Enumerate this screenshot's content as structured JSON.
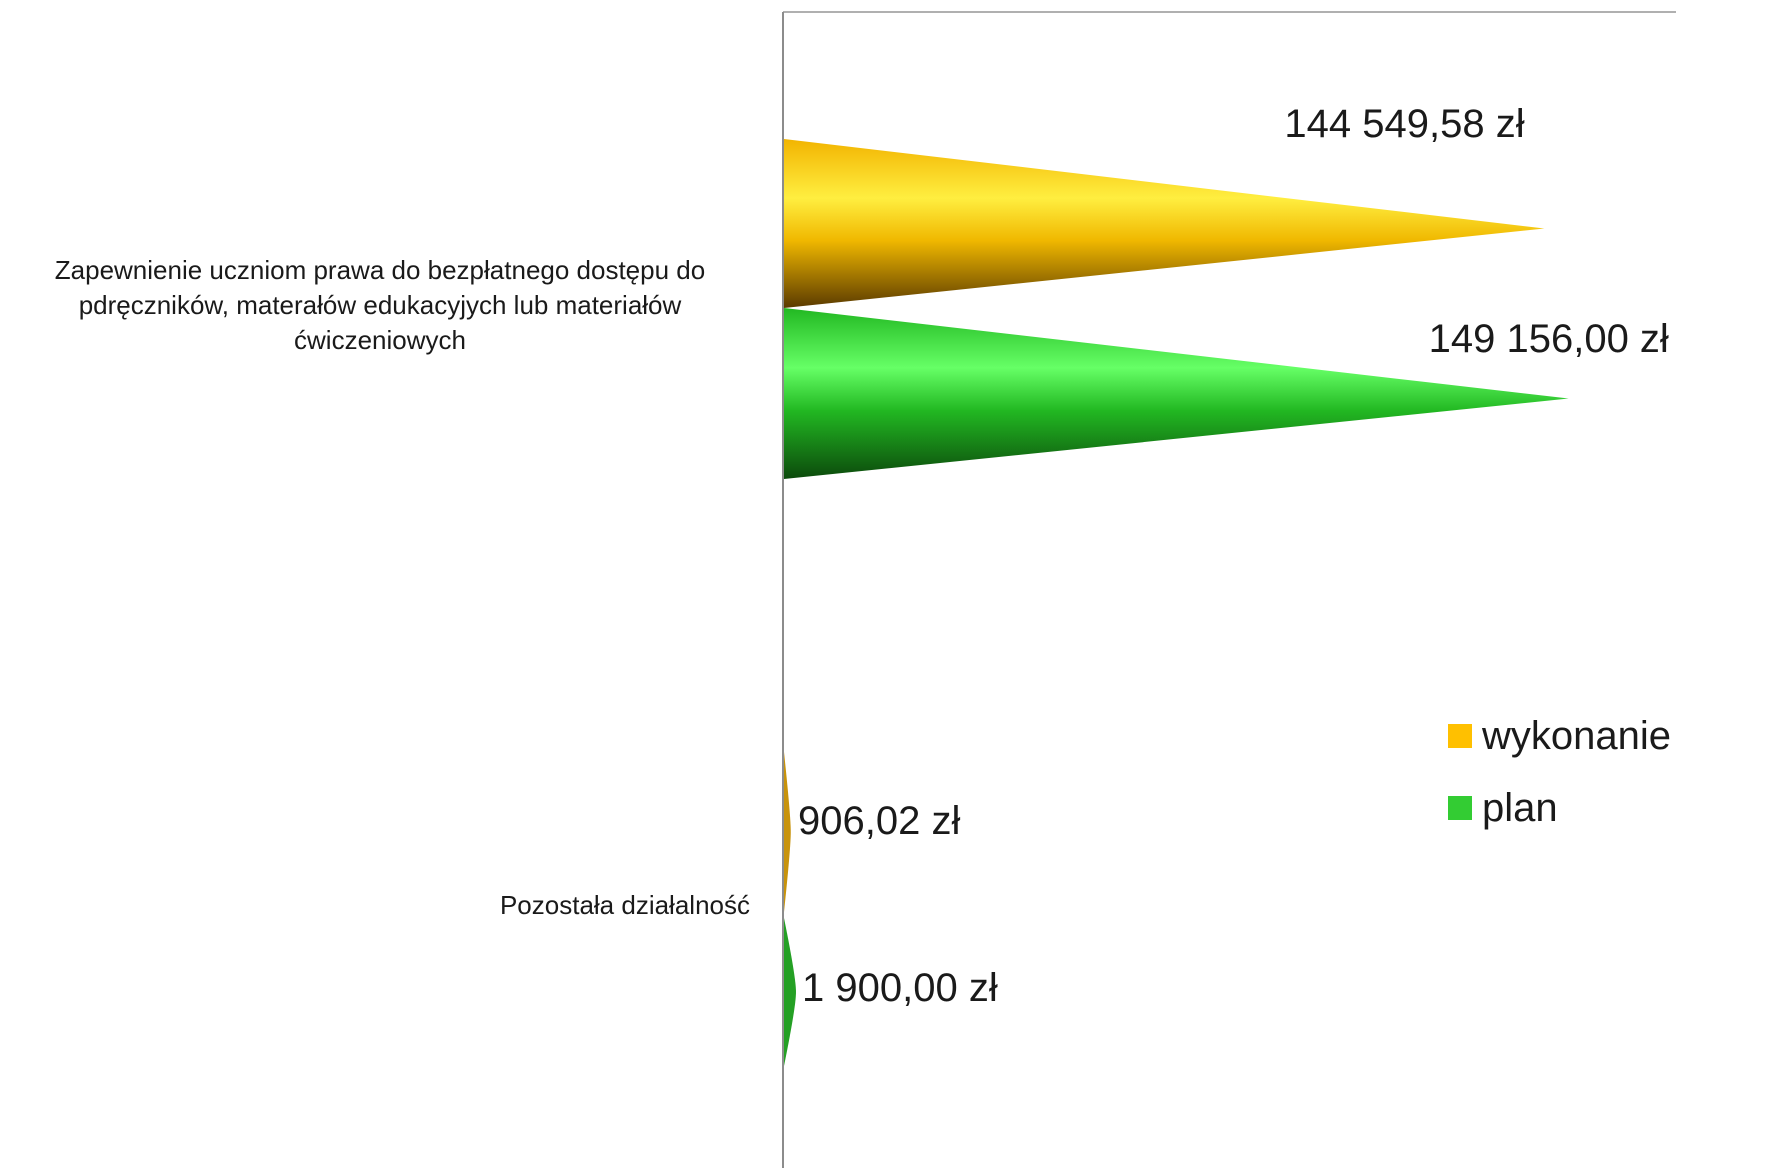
{
  "chart_data": {
    "type": "bar",
    "orientation": "horizontal",
    "bar_shape": "cone",
    "categories": [
      "Zapewnienie uczniom prawa do bezpłatnego dostępu do pdręczników, materałów edukacyjych lub materiałów ćwiczeniowych",
      "Pozostała działalność"
    ],
    "series": [
      {
        "name": "wykonanie",
        "color": "#ffc000",
        "values": [
          144549.58,
          906.02
        ],
        "labels": [
          "144 549,58 zł",
          "906,02 zł"
        ]
      },
      {
        "name": "plan",
        "color": "#33cc33",
        "values": [
          149156.0,
          1900.0
        ],
        "labels": [
          "149 156,00 zł",
          "1 900,00 zł"
        ]
      }
    ],
    "xlim": [
      0,
      160000
    ],
    "grid": false,
    "legend_position": "right"
  },
  "category_labels": {
    "first": "Zapewnienie uczniom prawa do bezpłatnego dostępu do pdręczników, materałów edukacyjych lub materiałów ćwiczeniowych",
    "second": "Pozostała działalność"
  },
  "legend": {
    "items": [
      {
        "label": "wykonanie",
        "color": "#ffc000"
      },
      {
        "label": "plan",
        "color": "#33cc33"
      }
    ]
  }
}
